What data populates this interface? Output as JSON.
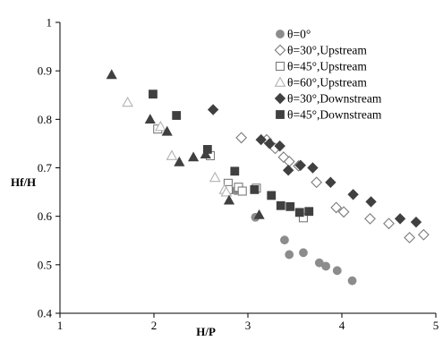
{
  "chart_data": {
    "type": "scatter",
    "xlabel": "H/P",
    "ylabel": "Hf/H",
    "xlim": [
      1,
      5
    ],
    "ylim": [
      0.4,
      1
    ],
    "xticks": [
      "1",
      "2",
      "3",
      "4",
      "5"
    ],
    "yticks": [
      "0.4",
      "0.5",
      "0.6",
      "0.7",
      "0.8",
      "0.9",
      "1"
    ],
    "grid": false,
    "legend_position": "top-right",
    "series": [
      {
        "name": "θ=0°",
        "marker": "circle",
        "filled": true,
        "color": "#8c8c8c",
        "points": [
          [
            2.87,
            0.653
          ],
          [
            3.08,
            0.598
          ],
          [
            3.39,
            0.551
          ],
          [
            3.44,
            0.521
          ],
          [
            3.59,
            0.525
          ],
          [
            3.76,
            0.504
          ],
          [
            3.83,
            0.497
          ],
          [
            3.95,
            0.488
          ],
          [
            4.11,
            0.467
          ]
        ]
      },
      {
        "name": "θ=30°,Upstream",
        "marker": "diamond",
        "filled": false,
        "color": "#7a7a7a",
        "points": [
          [
            2.93,
            0.762
          ],
          [
            3.2,
            0.758
          ],
          [
            3.29,
            0.74
          ],
          [
            3.38,
            0.722
          ],
          [
            3.44,
            0.713
          ],
          [
            3.54,
            0.704
          ],
          [
            3.73,
            0.67
          ],
          [
            3.94,
            0.618
          ],
          [
            4.02,
            0.609
          ],
          [
            4.3,
            0.595
          ],
          [
            4.5,
            0.585
          ],
          [
            4.72,
            0.556
          ],
          [
            4.87,
            0.562
          ]
        ]
      },
      {
        "name": "θ=45°,Upstream",
        "marker": "square",
        "filled": false,
        "color": "#7a7a7a",
        "points": [
          [
            2.04,
            0.78
          ],
          [
            2.6,
            0.725
          ],
          [
            2.79,
            0.668
          ],
          [
            2.79,
            0.655
          ],
          [
            2.9,
            0.66
          ],
          [
            2.94,
            0.652
          ],
          [
            3.09,
            0.658
          ],
          [
            3.59,
            0.597
          ]
        ]
      },
      {
        "name": "θ=60°,Upstream",
        "marker": "triangle",
        "filled": false,
        "color": "#b3b3b3",
        "points": [
          [
            1.72,
            0.835
          ],
          [
            2.07,
            0.785
          ],
          [
            2.19,
            0.725
          ],
          [
            2.65,
            0.68
          ],
          [
            2.75,
            0.655
          ],
          [
            2.77,
            0.65
          ]
        ]
      },
      {
        "name": "θ=30°,Downstream",
        "marker": "diamond",
        "filled": true,
        "color": "#404040",
        "points": [
          [
            2.63,
            0.82
          ],
          [
            3.14,
            0.758
          ],
          [
            3.23,
            0.75
          ],
          [
            3.34,
            0.745
          ],
          [
            3.43,
            0.695
          ],
          [
            3.56,
            0.705
          ],
          [
            3.69,
            0.7
          ],
          [
            3.88,
            0.67
          ],
          [
            4.12,
            0.645
          ],
          [
            4.31,
            0.63
          ],
          [
            4.62,
            0.595
          ],
          [
            4.79,
            0.588
          ]
        ]
      },
      {
        "name": "θ=45°,Downstream",
        "marker": "square",
        "filled": true,
        "color": "#404040",
        "points": [
          [
            1.99,
            0.852
          ],
          [
            2.24,
            0.808
          ],
          [
            2.57,
            0.738
          ],
          [
            2.86,
            0.693
          ],
          [
            3.07,
            0.655
          ],
          [
            3.25,
            0.643
          ],
          [
            3.35,
            0.622
          ],
          [
            3.45,
            0.62
          ],
          [
            3.55,
            0.608
          ],
          [
            3.65,
            0.61
          ]
        ]
      },
      {
        "name": "",
        "marker": "triangle",
        "filled": true,
        "color": "#404040",
        "points": [
          [
            1.55,
            0.892
          ],
          [
            1.96,
            0.8
          ],
          [
            2.14,
            0.775
          ],
          [
            2.27,
            0.712
          ],
          [
            2.42,
            0.722
          ],
          [
            2.55,
            0.728
          ],
          [
            2.8,
            0.633
          ],
          [
            3.12,
            0.603
          ]
        ]
      }
    ]
  }
}
